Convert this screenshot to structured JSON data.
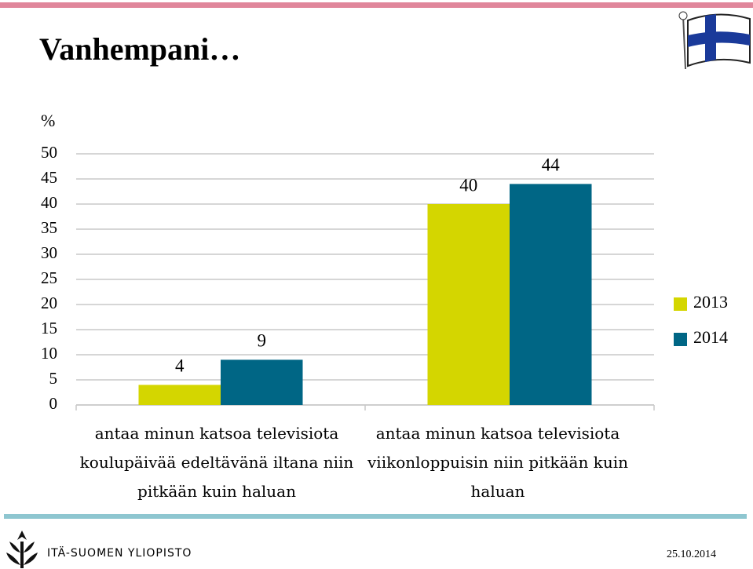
{
  "chart_data": {
    "type": "bar",
    "title": "Vanhempani…",
    "ylabel": "%",
    "categories": [
      "antaa minun katsoa televisiota koulupäivää edeltävänä iltana niin pitkään kuin haluan",
      "antaa minun katsoa televisiota viikonloppuisin niin pitkään kuin haluan"
    ],
    "series": [
      {
        "name": "2013",
        "color": "#d4d600",
        "values": [
          4,
          40
        ]
      },
      {
        "name": "2014",
        "color": "#006685",
        "values": [
          9,
          44
        ]
      }
    ],
    "ylim": [
      0,
      50
    ],
    "yticks": [
      0,
      5,
      10,
      15,
      20,
      25,
      30,
      35,
      40,
      45,
      50
    ],
    "grid": true,
    "legend": "right"
  },
  "footer": {
    "university": "ITÄ-SUOMEN YLIOPISTO",
    "date": "25.10.2014"
  }
}
